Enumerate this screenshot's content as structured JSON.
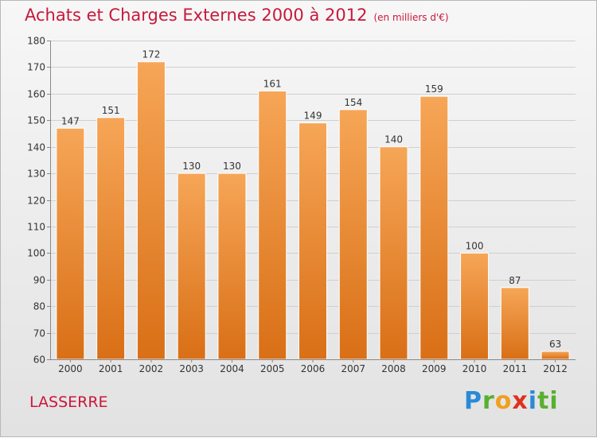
{
  "header": {
    "title": "Achats et Charges Externes 2000 à 2012",
    "unit": "(en milliers d'€)"
  },
  "footer": {
    "town": "LASSERRE",
    "logo_text": "Proxiti"
  },
  "colors": {
    "title": "#c8183c",
    "bar_top": "#f6a657",
    "bar_bottom": "#d96f16"
  },
  "chart_data": {
    "type": "bar",
    "title": "Achats et Charges Externes 2000 à 2012",
    "subtitle": "(en milliers d'€)",
    "categories": [
      "2000",
      "2001",
      "2002",
      "2003",
      "2004",
      "2005",
      "2006",
      "2007",
      "2008",
      "2009",
      "2010",
      "2011",
      "2012"
    ],
    "values": [
      147,
      151,
      172,
      130,
      130,
      161,
      149,
      154,
      140,
      159,
      100,
      87,
      63
    ],
    "ylim": [
      60,
      180
    ],
    "yticks": [
      60,
      70,
      80,
      90,
      100,
      110,
      120,
      130,
      140,
      150,
      160,
      170,
      180
    ],
    "grid": true
  }
}
